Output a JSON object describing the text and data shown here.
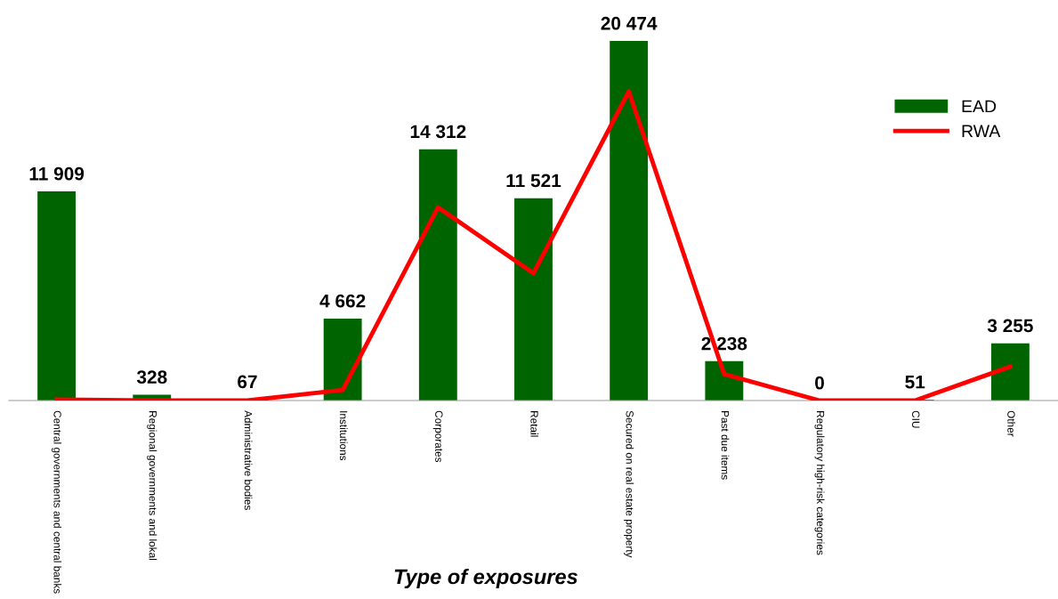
{
  "chart_data": {
    "type": "bar",
    "xlabel": "Type of exposures",
    "categories": [
      "Central governments and central banks",
      "Regional governments and lokal",
      "Administrative bodies",
      "Institutions",
      "Corporates",
      "Retail",
      "Secured on real estate property",
      "Past due items",
      "Regulatory high-risk categories",
      "CIU",
      "Other"
    ],
    "series": [
      {
        "name": "EAD",
        "color": "#006400",
        "values": [
          11909,
          328,
          67,
          4662,
          14312,
          11521,
          20474,
          2238,
          0,
          51,
          3255
        ],
        "value_labels": [
          "11 909",
          "328",
          "67",
          "4 662",
          "14 312",
          "11 521",
          "20 474",
          "2 238",
          "0",
          "51",
          "3 255"
        ]
      },
      {
        "name": "RWA",
        "type": "line",
        "color": "#ff0000",
        "values": [
          50,
          0,
          0,
          600,
          11000,
          7250,
          17600,
          1500,
          0,
          0,
          1930
        ]
      }
    ],
    "legend": "right",
    "grid": false,
    "marker": "none",
    "line_style": "solid"
  }
}
